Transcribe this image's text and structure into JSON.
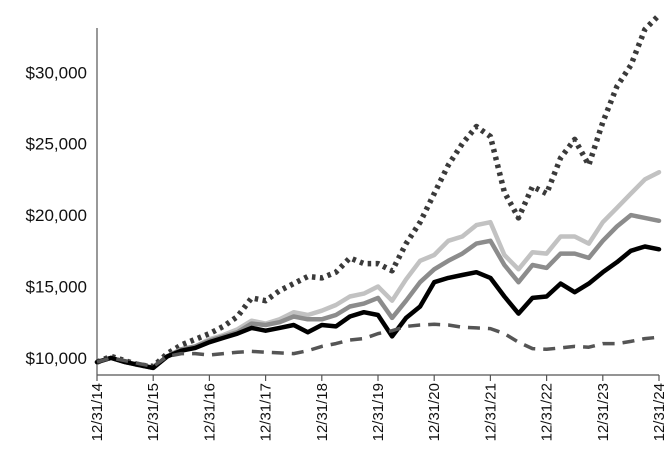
{
  "chart_data": {
    "type": "line",
    "title": "",
    "xlabel": "",
    "ylabel": "",
    "ylim": [
      8800,
      34500
    ],
    "y_ticks": [
      10000,
      15000,
      20000,
      25000,
      30000
    ],
    "y_tick_labels": [
      "$10,000",
      "$15,000",
      "$20,000",
      "$25,000",
      "$30,000"
    ],
    "x_tick_labels": [
      "12/31/14",
      "12/31/15",
      "12/31/16",
      "12/31/17",
      "12/31/18",
      "12/31/19",
      "12/31/20",
      "12/31/21",
      "12/31/22",
      "12/31/23",
      "12/31/24"
    ],
    "x_range": [
      0,
      10
    ],
    "grid": false,
    "legend": "none",
    "series": [
      {
        "style": "dotted",
        "color": "#3a3a3a",
        "x": [
          0,
          0.25,
          0.5,
          0.75,
          1,
          1.25,
          1.5,
          1.75,
          2,
          2.25,
          2.5,
          2.75,
          3,
          3.25,
          3.5,
          3.75,
          4,
          4.25,
          4.5,
          4.75,
          5,
          5.25,
          5.5,
          5.75,
          6,
          6.25,
          6.5,
          6.75,
          7,
          7.25,
          7.5,
          7.75,
          8,
          8.25,
          8.5,
          8.75,
          9,
          9.25,
          9.5,
          9.75,
          10
        ],
        "values": [
          9700,
          10100,
          9800,
          9500,
          9400,
          10300,
          10900,
          11300,
          11700,
          12200,
          12900,
          14200,
          14000,
          14700,
          15200,
          15700,
          15600,
          16000,
          17000,
          16600,
          16600,
          16100,
          18000,
          19500,
          21500,
          23500,
          25000,
          26200,
          25500,
          21600,
          19800,
          22000,
          21500,
          24000,
          25300,
          23500,
          26500,
          29000,
          30500,
          33000,
          34000
        ]
      },
      {
        "style": "solid",
        "color": "#c2c2c2",
        "x": [
          0,
          0.25,
          0.5,
          0.75,
          1,
          1.25,
          1.5,
          1.75,
          2,
          2.25,
          2.5,
          2.75,
          3,
          3.25,
          3.5,
          3.75,
          4,
          4.25,
          4.5,
          4.75,
          5,
          5.25,
          5.5,
          5.75,
          6,
          6.25,
          6.5,
          6.75,
          7,
          7.25,
          7.5,
          7.75,
          8,
          8.25,
          8.5,
          8.75,
          9,
          9.25,
          9.5,
          9.75,
          10
        ],
        "values": [
          9700,
          10000,
          9700,
          9500,
          9300,
          10100,
          10600,
          10800,
          11300,
          11600,
          12000,
          12600,
          12400,
          12700,
          13200,
          13000,
          13300,
          13700,
          14300,
          14500,
          15000,
          14000,
          15500,
          16800,
          17200,
          18200,
          18500,
          19300,
          19500,
          17200,
          16200,
          17400,
          17300,
          18500,
          18500,
          18000,
          19500,
          20500,
          21500,
          22500,
          23000
        ]
      },
      {
        "style": "solid",
        "color": "#8c8c8c",
        "x": [
          0,
          0.25,
          0.5,
          0.75,
          1,
          1.25,
          1.5,
          1.75,
          2,
          2.25,
          2.5,
          2.75,
          3,
          3.25,
          3.5,
          3.75,
          4,
          4.25,
          4.5,
          4.75,
          5,
          5.25,
          5.5,
          5.75,
          6,
          6.25,
          6.5,
          6.75,
          7,
          7.25,
          7.5,
          7.75,
          8,
          8.25,
          8.5,
          8.75,
          9,
          9.25,
          9.5,
          9.75,
          10
        ],
        "values": [
          9700,
          10000,
          9700,
          9500,
          9300,
          10100,
          10600,
          10800,
          11200,
          11500,
          11800,
          12400,
          12300,
          12500,
          12900,
          12700,
          12700,
          13000,
          13600,
          13800,
          14200,
          12800,
          14000,
          15300,
          16200,
          16800,
          17300,
          18000,
          18200,
          16500,
          15300,
          16500,
          16300,
          17300,
          17300,
          17000,
          18200,
          19200,
          20000,
          19800,
          19600
        ]
      },
      {
        "style": "solid",
        "color": "#000000",
        "x": [
          0,
          0.25,
          0.5,
          0.75,
          1,
          1.25,
          1.5,
          1.75,
          2,
          2.25,
          2.5,
          2.75,
          3,
          3.25,
          3.5,
          3.75,
          4,
          4.25,
          4.5,
          4.75,
          5,
          5.25,
          5.5,
          5.75,
          6,
          6.25,
          6.5,
          6.75,
          7,
          7.25,
          7.5,
          7.75,
          8,
          8.25,
          8.5,
          8.75,
          9,
          9.25,
          9.5,
          9.75,
          10
        ],
        "values": [
          9700,
          10000,
          9700,
          9500,
          9300,
          10100,
          10500,
          10700,
          11100,
          11400,
          11700,
          12100,
          11900,
          12100,
          12300,
          11800,
          12300,
          12200,
          12900,
          13200,
          13000,
          11500,
          12800,
          13600,
          15300,
          15600,
          15800,
          16000,
          15600,
          14300,
          13100,
          14200,
          14300,
          15200,
          14600,
          15200,
          16000,
          16700,
          17500,
          17800,
          17600
        ]
      },
      {
        "style": "dashed",
        "color": "#555555",
        "x": [
          0,
          0.25,
          0.5,
          0.75,
          1,
          1.25,
          1.5,
          1.75,
          2,
          2.25,
          2.5,
          2.75,
          3,
          3.25,
          3.5,
          3.75,
          4,
          4.25,
          4.5,
          4.75,
          5,
          5.25,
          5.5,
          5.75,
          6,
          6.25,
          6.5,
          6.75,
          7,
          7.25,
          7.5,
          7.75,
          8,
          8.25,
          8.5,
          8.75,
          9,
          9.25,
          9.5,
          9.75,
          10
        ],
        "values": [
          9700,
          10000,
          9800,
          9600,
          9400,
          10100,
          10300,
          10300,
          10200,
          10300,
          10400,
          10450,
          10400,
          10350,
          10300,
          10500,
          10800,
          11000,
          11250,
          11350,
          11700,
          11900,
          12200,
          12300,
          12350,
          12300,
          12150,
          12100,
          12050,
          11700,
          11100,
          10650,
          10600,
          10700,
          10800,
          10750,
          11000,
          11000,
          11150,
          11350,
          11450
        ]
      }
    ]
  }
}
